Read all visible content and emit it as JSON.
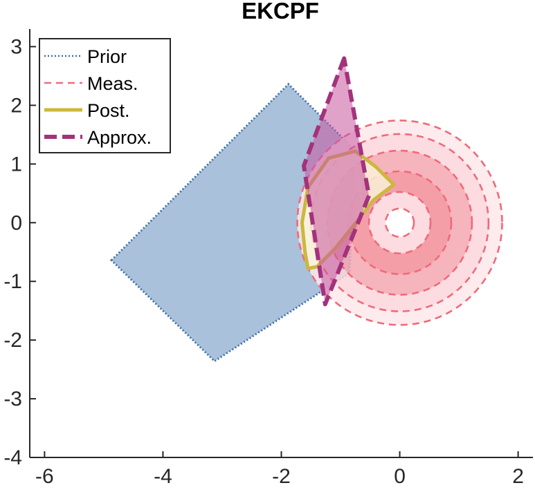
{
  "chart_data": {
    "type": "area",
    "title": "EKCPF",
    "xlabel": "",
    "ylabel": "",
    "xlim": [
      -6.25,
      2.25
    ],
    "ylim": [
      -4,
      3.3
    ],
    "xticks": [
      -6,
      -4,
      -2,
      0,
      2
    ],
    "yticks": [
      -4,
      -3,
      -2,
      -1,
      0,
      1,
      2,
      3
    ],
    "xtick_labels": [
      "-6",
      "-4",
      "-2",
      "0",
      "2"
    ],
    "ytick_labels": [
      "-4",
      "-3",
      "-2",
      "-1",
      "0",
      "1",
      "2",
      "3"
    ],
    "grid": false,
    "legend_position": "top-left",
    "series": [
      {
        "name": "Prior",
        "shape": "polygon",
        "line_style": "dotted",
        "color": "#3f6fa8",
        "fill": "#a9c1db",
        "points": [
          [
            -4.87,
            -0.64
          ],
          [
            -1.88,
            2.36
          ],
          [
            -0.76,
            1.24
          ],
          [
            -0.85,
            -0.86
          ],
          [
            -3.13,
            -2.36
          ]
        ]
      },
      {
        "name": "Meas.",
        "shape": "concentric-annuli",
        "line_style": "dashed",
        "color": "#ef6a7a",
        "center": [
          0,
          0
        ],
        "radii": [
          0.24,
          0.52,
          0.87,
          1.22,
          1.5,
          1.73
        ],
        "band_fills": [
          "#fbd6da",
          "#f28d99",
          "#f5a7b0",
          "#fbd6da",
          "#fde8ea"
        ]
      },
      {
        "name": "Post.",
        "shape": "polygon",
        "line_style": "solid",
        "color": "#cbb83d",
        "fill": "#faf5da",
        "points": [
          [
            -1.55,
            -0.78
          ],
          [
            -1.6,
            -0.5
          ],
          [
            -1.65,
            0
          ],
          [
            -1.55,
            0.6
          ],
          [
            -1.2,
            1.1
          ],
          [
            -0.75,
            1.22
          ],
          [
            -0.4,
            0.95
          ],
          [
            -0.1,
            0.65
          ],
          [
            -0.45,
            0.38
          ],
          [
            -0.7,
            0.05
          ],
          [
            -1.1,
            -0.45
          ],
          [
            -1.4,
            -0.75
          ]
        ]
      },
      {
        "name": "Approx.",
        "shape": "polygon",
        "line_style": "dashed",
        "color": "#a3327c",
        "fill": "#c9559e",
        "points": [
          [
            -0.94,
            2.8
          ],
          [
            -1.62,
            0.97
          ],
          [
            -1.26,
            -1.39
          ],
          [
            -0.52,
            0.46
          ]
        ]
      }
    ]
  }
}
